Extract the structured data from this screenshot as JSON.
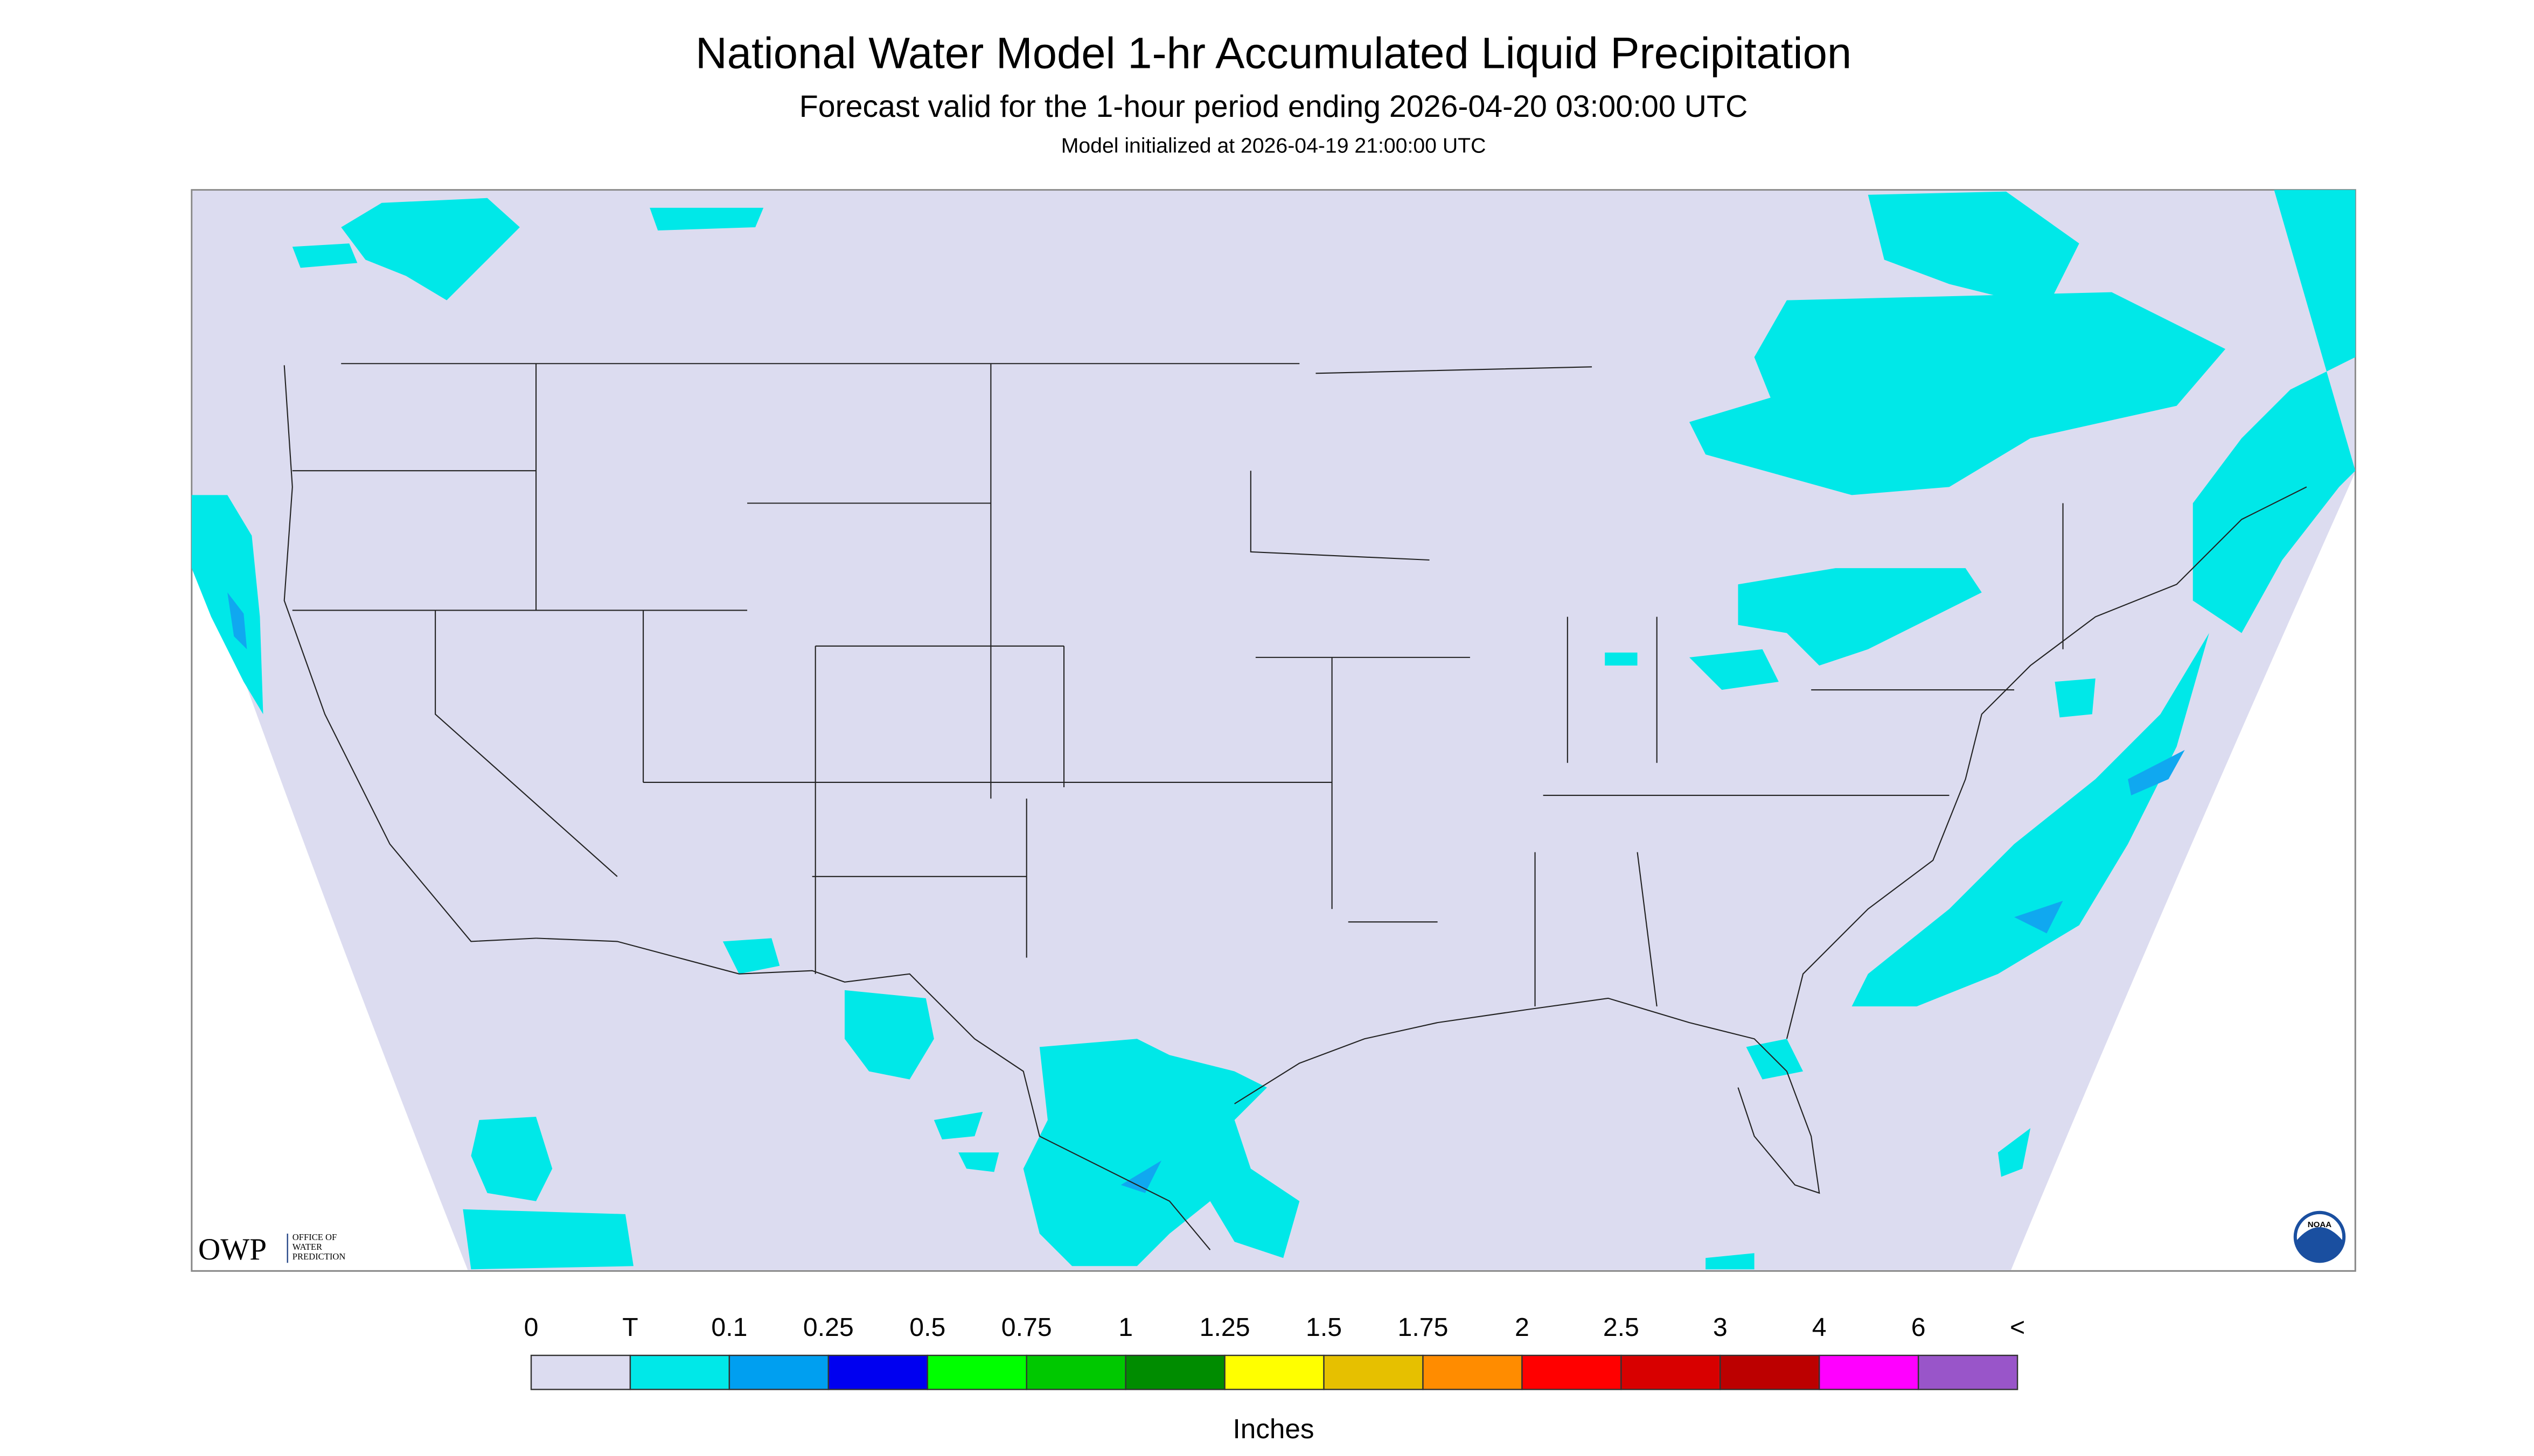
{
  "header": {
    "title": "National Water Model 1-hr Accumulated Liquid Precipitation",
    "subtitle": "Forecast valid for the 1-hour period ending 2026-04-20 03:00:00 UTC",
    "note": "Model initialized at 2026-04-19 21:00:00 UTC"
  },
  "legend": {
    "labels": [
      "0",
      "T",
      "0.1",
      "0.25",
      "0.5",
      "0.75",
      "1",
      "1.25",
      "1.5",
      "1.75",
      "2",
      "2.5",
      "3",
      "4",
      "6",
      "<"
    ],
    "colors": [
      "#dcdcf0",
      "#00e8e8",
      "#009ff0",
      "#0000f0",
      "#00ff00",
      "#00c800",
      "#008c00",
      "#ffff00",
      "#e6c000",
      "#ff8c00",
      "#ff0000",
      "#d80000",
      "#bc0000",
      "#ff00ff",
      "#9955c9"
    ],
    "unit": "Inches"
  },
  "logos": {
    "owp": "OWP",
    "owp_text": [
      "OFFICE OF",
      "WATER",
      "PREDICTION"
    ],
    "noaa": "NOAA"
  }
}
